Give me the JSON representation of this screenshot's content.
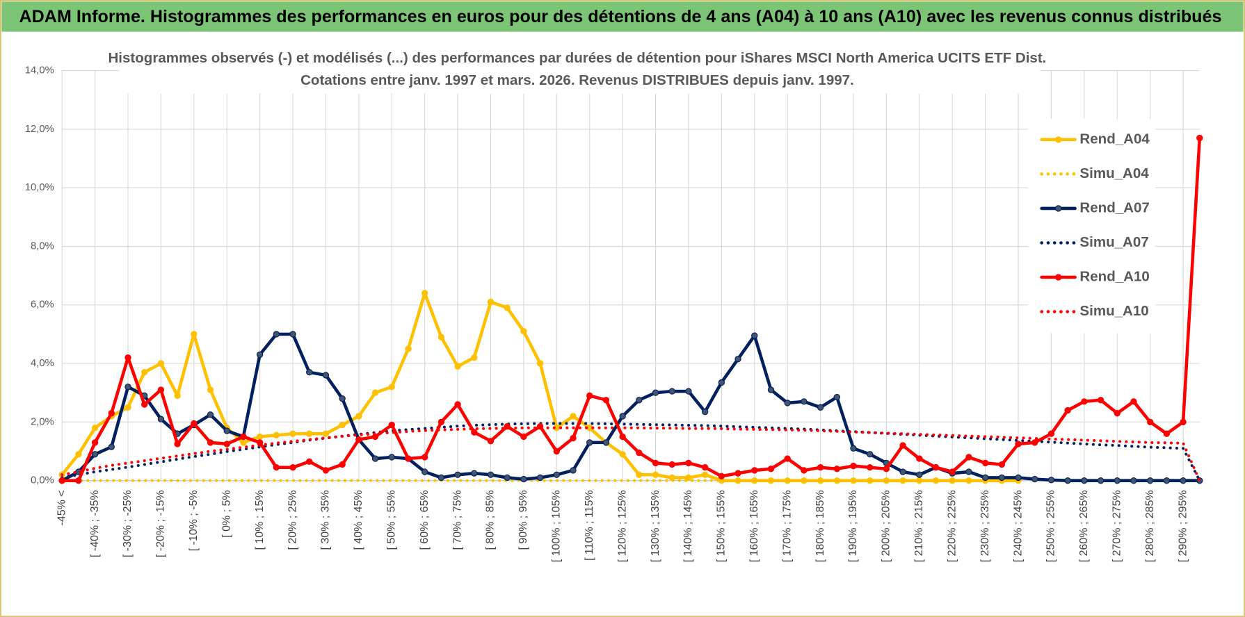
{
  "chart_data": {
    "type": "line",
    "title": "ADAM Informe. Histogrammes des performances en euros pour des détentions de 4 ans (A04) à 10 ans (A10) avec les revenus connus distribués",
    "subtitle": [
      "Histogrammes observés (-) et modélisés (...) des performances par durées de détention pour iShares MSCI North America UCITS ETF Dist.",
      "Cotations entre janv. 1997 et mars. 2026.  Revenus DISTRIBUES depuis janv. 1997."
    ],
    "categories": [
      "-45% <",
      null,
      "[ -40% ; -35%",
      null,
      "[ -30% ; -25%",
      null,
      "[ -20% ; -15%",
      null,
      "[ -10% ; -5%",
      null,
      "[ 0% ; 5%",
      null,
      "[ 10% ; 15%",
      null,
      "[ 20% ; 25%",
      null,
      "[ 30% ; 35%",
      null,
      "[ 40% ; 45%",
      null,
      "[ 50% ; 55%",
      null,
      "[ 60% ; 65%",
      null,
      "[ 70% ; 75%",
      null,
      "[ 80% ; 85%",
      null,
      "[ 90% ; 95%",
      null,
      "[ 100% ; 105%",
      null,
      "[ 110% ; 115%",
      null,
      "[ 120% ; 125%",
      null,
      "[ 130% ; 135%",
      null,
      "[ 140% ; 145%",
      null,
      "[ 150% ; 155%",
      null,
      "[ 160% ; 165%",
      null,
      "[ 170% ; 175%",
      null,
      "[ 180% ; 185%",
      null,
      "[ 190% ; 195%",
      null,
      "[ 200% ; 205%",
      null,
      "[ 210% ; 215%",
      null,
      "[ 220% ; 225%",
      null,
      "[ 230% ; 235%",
      null,
      "[ 240% ; 245%",
      null,
      "[ 250% ; 255%",
      null,
      "[ 260% ; 265%",
      null,
      "[ 270% ; 275%",
      null,
      "[ 280% ; 285%",
      null,
      "[ 290% ; 295%",
      null
    ],
    "series": [
      {
        "name": "Rend_A04",
        "color": "#ffc000",
        "line_style": "solid",
        "markers": true,
        "values": [
          0.2,
          0.9,
          1.8,
          2.2,
          2.5,
          3.7,
          4.0,
          2.9,
          5.0,
          3.1,
          1.8,
          1.3,
          1.5,
          1.55,
          1.6,
          1.6,
          1.6,
          1.9,
          2.2,
          3.0,
          3.2,
          4.5,
          6.4,
          4.9,
          3.9,
          4.2,
          6.1,
          5.9,
          5.1,
          4.0,
          1.8,
          2.2,
          1.8,
          1.3,
          0.9,
          0.2,
          0.2,
          0.1,
          0.1,
          0.2,
          0,
          0,
          0,
          0,
          0,
          0,
          0,
          0,
          0,
          0,
          0,
          0,
          0,
          0,
          0,
          0,
          0,
          0,
          0,
          null,
          null,
          null,
          null,
          null,
          null,
          null,
          null,
          null,
          null,
          null
        ]
      },
      {
        "name": "Simu_A04",
        "color": "#ffc000",
        "line_style": "dotted",
        "markers": false,
        "values": [
          0,
          0,
          0,
          0,
          0,
          0,
          0,
          0,
          0,
          0,
          0,
          0,
          0,
          0,
          0,
          0,
          0,
          0,
          0,
          0,
          0,
          0,
          0,
          0,
          0,
          0,
          0,
          0,
          0,
          0,
          0,
          0,
          0,
          0,
          0,
          0,
          0,
          0,
          0,
          0,
          0,
          0,
          0,
          0,
          0,
          0,
          0,
          0,
          0,
          0,
          0,
          0,
          0,
          0,
          0,
          0,
          0,
          0,
          0,
          null,
          null,
          null,
          null,
          null,
          null,
          null,
          null,
          null,
          null,
          null
        ]
      },
      {
        "name": "Rend_A07",
        "color": "#002060",
        "line_style": "solid",
        "markers": true,
        "values": [
          0.0,
          0.3,
          0.9,
          1.15,
          3.2,
          2.9,
          2.1,
          1.6,
          1.9,
          2.25,
          1.7,
          1.5,
          4.3,
          5.0,
          5.0,
          3.7,
          3.6,
          2.8,
          1.4,
          0.75,
          0.8,
          0.75,
          0.3,
          0.1,
          0.2,
          0.25,
          0.2,
          0.1,
          0.05,
          0.1,
          0.2,
          0.35,
          1.3,
          1.3,
          2.2,
          2.75,
          3.0,
          3.05,
          3.05,
          2.35,
          3.35,
          4.15,
          4.95,
          3.1,
          2.65,
          2.7,
          2.5,
          2.85,
          1.1,
          0.9,
          0.6,
          0.3,
          0.2,
          0.45,
          0.25,
          0.3,
          0.1,
          0.1,
          0.1,
          0.05,
          0.02,
          0,
          0,
          0,
          0,
          0,
          0,
          0,
          0,
          0
        ]
      },
      {
        "name": "Simu_A07",
        "color": "#002060",
        "line_style": "dotted",
        "markers": false,
        "values": [
          0.1,
          0.2,
          0.3,
          0.38,
          0.46,
          0.55,
          0.64,
          0.73,
          0.82,
          0.9,
          0.99,
          1.07,
          1.15,
          1.23,
          1.3,
          1.38,
          1.45,
          1.52,
          1.58,
          1.64,
          1.7,
          1.74,
          1.78,
          1.82,
          1.86,
          1.89,
          1.91,
          1.93,
          1.94,
          1.95,
          1.95,
          1.95,
          1.95,
          1.94,
          1.93,
          1.92,
          1.91,
          1.9,
          1.89,
          1.88,
          1.86,
          1.84,
          1.82,
          1.8,
          1.78,
          1.76,
          1.73,
          1.7,
          1.67,
          1.64,
          1.61,
          1.58,
          1.55,
          1.52,
          1.49,
          1.46,
          1.43,
          1.4,
          1.37,
          1.34,
          1.31,
          1.28,
          1.25,
          1.22,
          1.2,
          1.17,
          1.14,
          1.12,
          1.1,
          0
        ]
      },
      {
        "name": "Rend_A10",
        "color": "#ff0000",
        "line_style": "solid",
        "markers": true,
        "values": [
          0.0,
          0.0,
          1.3,
          2.3,
          4.2,
          2.6,
          3.1,
          1.25,
          1.95,
          1.3,
          1.25,
          1.5,
          1.3,
          0.45,
          0.45,
          0.65,
          0.35,
          0.55,
          1.4,
          1.5,
          1.9,
          0.75,
          0.8,
          2.0,
          2.6,
          1.65,
          1.35,
          1.85,
          1.5,
          1.85,
          1.0,
          1.45,
          2.9,
          2.75,
          1.5,
          0.95,
          0.6,
          0.55,
          0.6,
          0.45,
          0.15,
          0.25,
          0.35,
          0.4,
          0.75,
          0.35,
          0.45,
          0.4,
          0.5,
          0.45,
          0.4,
          1.2,
          0.75,
          0.45,
          0.3,
          0.8,
          0.6,
          0.55,
          1.25,
          1.3,
          1.6,
          2.4,
          2.7,
          2.75,
          2.3,
          2.7,
          2.0,
          1.6,
          2.0,
          11.7
        ]
      },
      {
        "name": "Simu_A10",
        "color": "#ff0000",
        "line_style": "dotted",
        "markers": false,
        "values": [
          0.2,
          0.3,
          0.42,
          0.52,
          0.6,
          0.68,
          0.76,
          0.84,
          0.92,
          1.0,
          1.07,
          1.14,
          1.21,
          1.28,
          1.34,
          1.4,
          1.46,
          1.51,
          1.56,
          1.6,
          1.64,
          1.68,
          1.71,
          1.73,
          1.75,
          1.77,
          1.78,
          1.79,
          1.8,
          1.8,
          1.8,
          1.8,
          1.8,
          1.8,
          1.8,
          1.8,
          1.79,
          1.79,
          1.78,
          1.78,
          1.77,
          1.76,
          1.75,
          1.74,
          1.73,
          1.72,
          1.7,
          1.68,
          1.66,
          1.64,
          1.62,
          1.6,
          1.58,
          1.56,
          1.54,
          1.52,
          1.5,
          1.48,
          1.46,
          1.44,
          1.42,
          1.4,
          1.38,
          1.36,
          1.34,
          1.32,
          1.3,
          1.29,
          1.28,
          0
        ]
      }
    ],
    "ylim": [
      0,
      14
    ],
    "yticks": [
      {
        "value": 0,
        "label": "0,0%"
      },
      {
        "value": 2,
        "label": "2,0%"
      },
      {
        "value": 4,
        "label": "4,0%"
      },
      {
        "value": 6,
        "label": "6,0%"
      },
      {
        "value": 8,
        "label": "8,0%"
      },
      {
        "value": 10,
        "label": "10,0%"
      },
      {
        "value": 12,
        "label": "12,0%"
      },
      {
        "value": 14,
        "label": "14,0%"
      }
    ],
    "grid": true,
    "legend": "right"
  }
}
